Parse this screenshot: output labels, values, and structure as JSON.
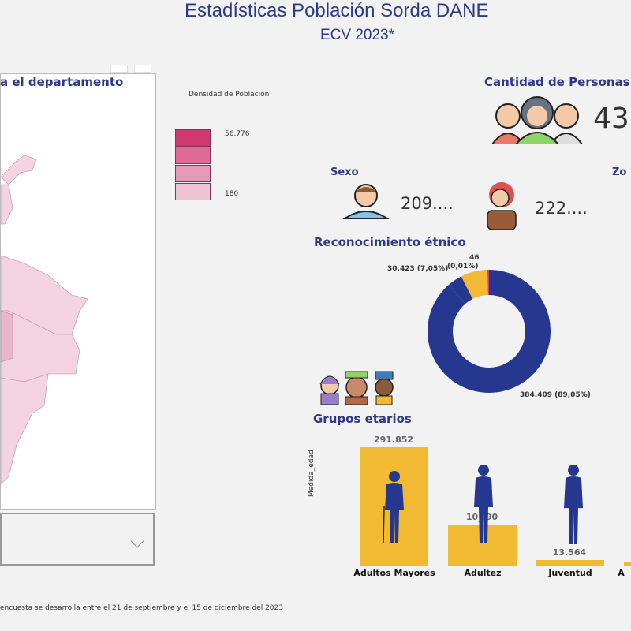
{
  "header": {
    "title": "Estadísticas Población Sorda DANE",
    "subtitle": "ECV 2023*"
  },
  "map": {
    "title": "a el departamento",
    "legend": {
      "title": "Densidad de Población",
      "max": "56.776",
      "min": "180",
      "colors": [
        "#d1386f",
        "#e06a96",
        "#e79ab8",
        "#efc4d5"
      ]
    }
  },
  "filter": {
    "value": ""
  },
  "footnote": "encuesta se desarrolla entre el 21 de septiembre y el 15 de diciembre del 2023",
  "cantidad": {
    "title": "Cantidad de Personas",
    "value": "43"
  },
  "sexo": {
    "title": "Sexo",
    "hombres": "209....",
    "mujeres": "222...."
  },
  "zona": {
    "title": "Zo"
  },
  "etnico": {
    "title": "Reconocimiento étnico",
    "slices": [
      {
        "value": 384409,
        "label": "384.409 (89,05%)",
        "color": "#26378f"
      },
      {
        "value": 30423,
        "label": "30.423 (7,05%)",
        "color": "#f2b933"
      },
      {
        "value": 46,
        "label_top": "46",
        "label": "(0,01%)",
        "color": "#d63f7c"
      }
    ]
  },
  "chart_data": {
    "type": "bar",
    "title": "Grupos etarios",
    "ylabel": "Medida_edad",
    "categories": [
      "Adultos Mayores",
      "Adultez",
      "Juventud",
      "A"
    ],
    "values": [
      291852,
      101090,
      13564,
      4000
    ],
    "labels": [
      "291.852",
      "10_.90",
      "13.564",
      ""
    ],
    "color": "#f2b933"
  }
}
